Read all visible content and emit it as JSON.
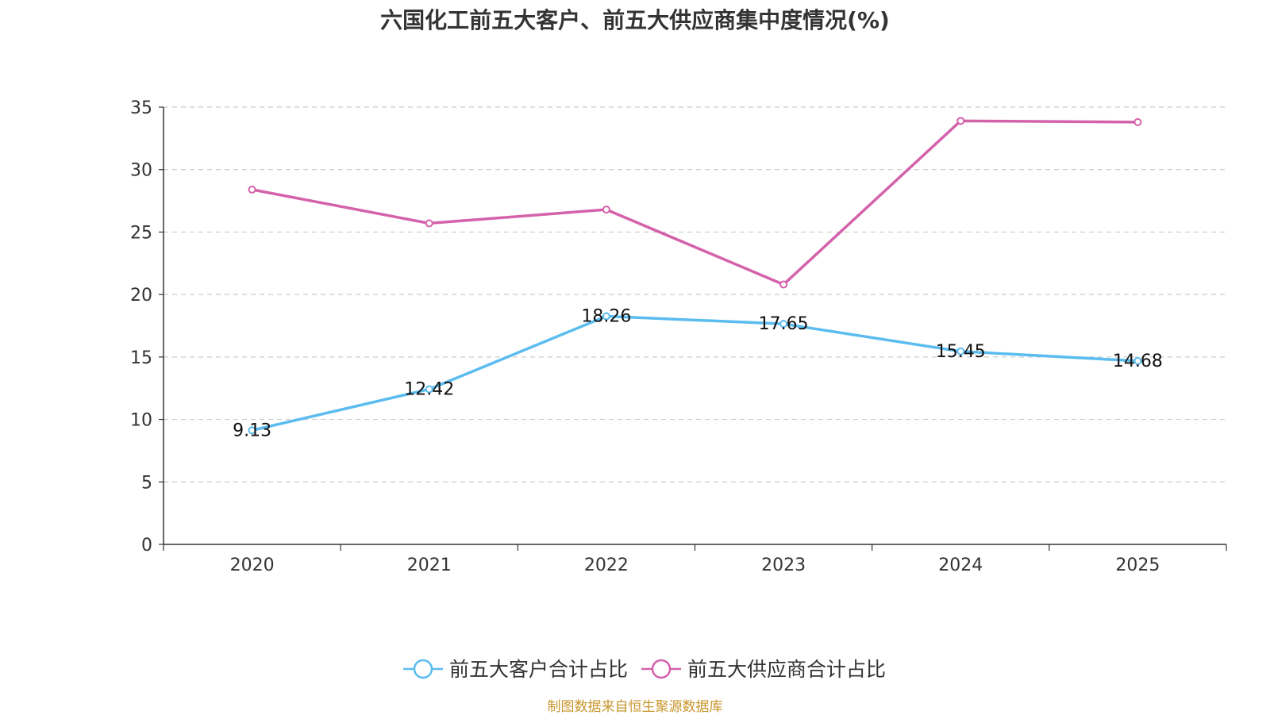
{
  "chart_data": {
    "type": "line",
    "title": "六国化工前五大客户、前五大供应商集中度情况(%)",
    "categories": [
      "2020",
      "2021",
      "2022",
      "2023",
      "2024",
      "2025"
    ],
    "ylim": [
      0,
      35
    ],
    "yticks": [
      0,
      5,
      10,
      15,
      20,
      25,
      30,
      35
    ],
    "grid": true,
    "legend_position": "bottom-center",
    "xlabel": "",
    "ylabel": "",
    "series": [
      {
        "name": "前五大客户合计占比",
        "color": "#5bbcf0",
        "values": [
          9.13,
          12.42,
          18.26,
          17.65,
          15.45,
          14.68
        ],
        "data_labels": [
          "9.13",
          "12.42",
          "18.26",
          "17.65",
          "15.45",
          "14.68"
        ]
      },
      {
        "name": "前五大供应商合计占比",
        "color": "#d462ab",
        "values": [
          28.4,
          25.7,
          26.8,
          20.8,
          33.9,
          33.8
        ],
        "data_labels": []
      }
    ]
  },
  "source": "制图数据来自恒生聚源数据库"
}
